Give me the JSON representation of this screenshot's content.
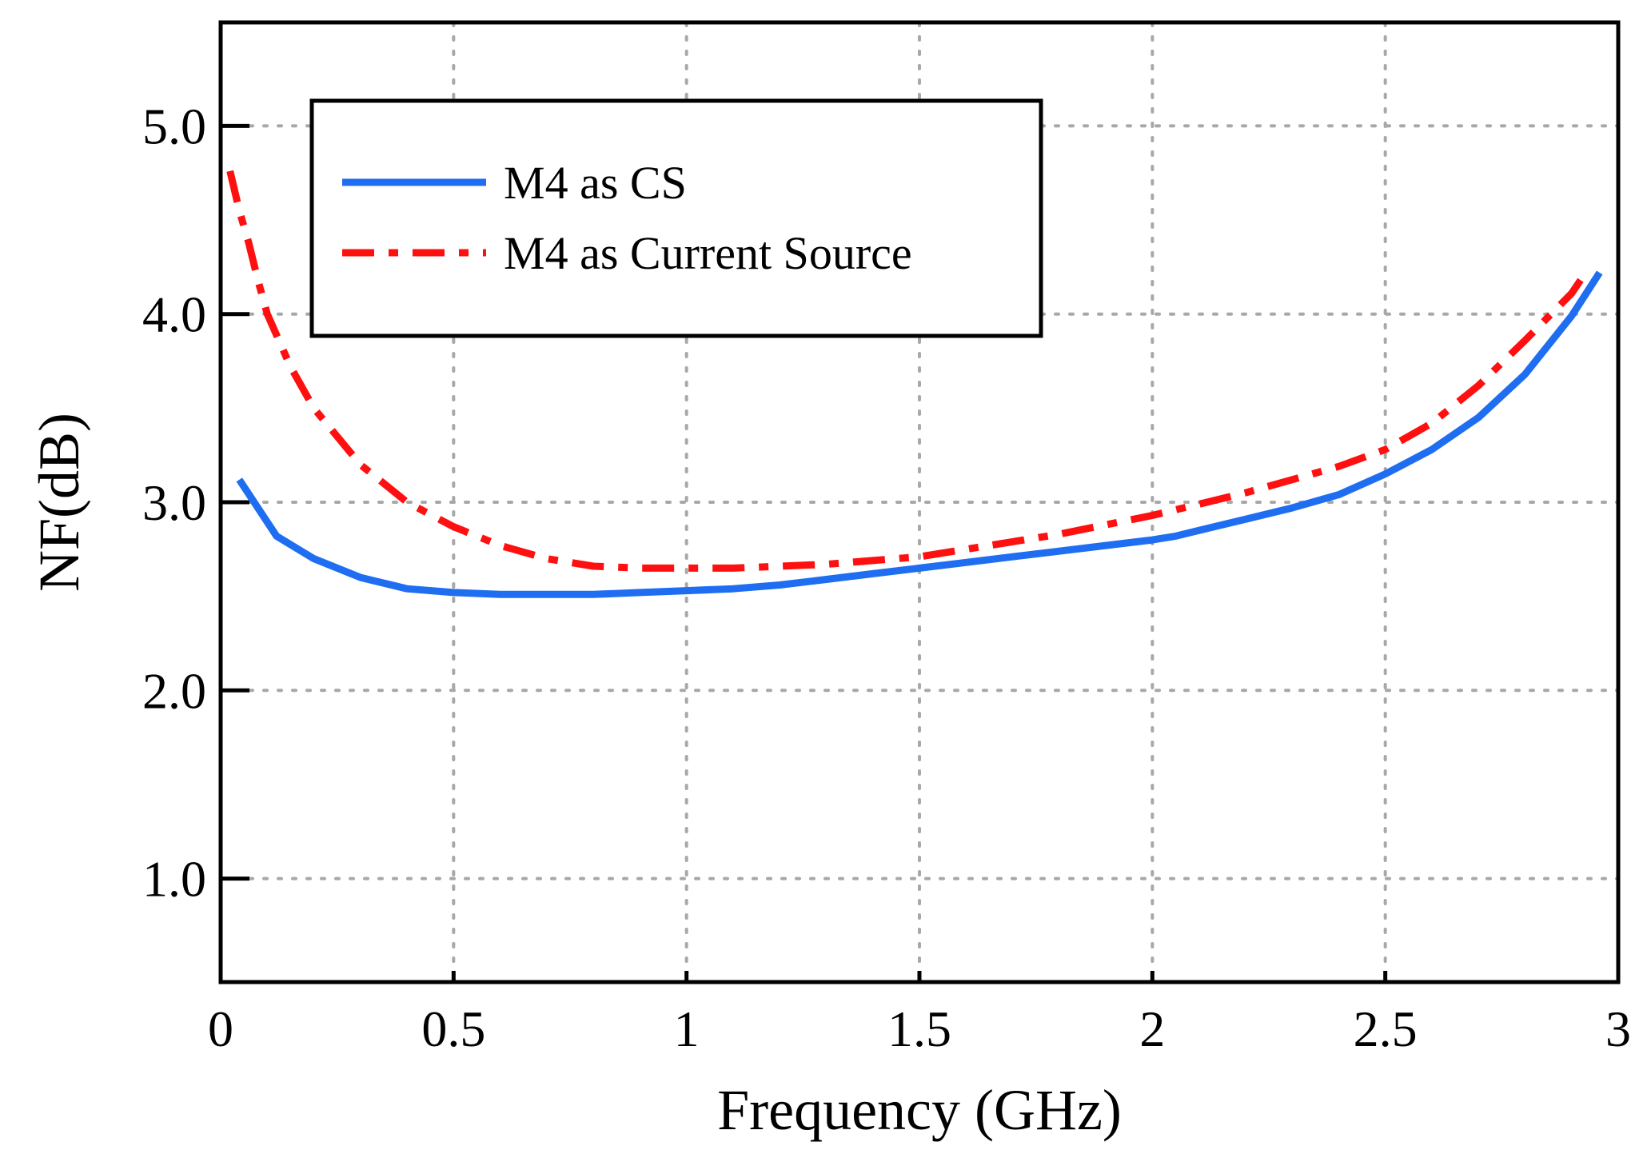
{
  "chart_data": {
    "type": "line",
    "title": "",
    "xlabel": "Frequency (GHz)",
    "ylabel": "NF(dB)",
    "xlim": [
      0,
      3
    ],
    "ylim": [
      0.45,
      5.55
    ],
    "grid": true,
    "x_ticks": [
      0,
      0.5,
      1,
      1.5,
      2,
      2.5,
      3
    ],
    "x_tick_labels": [
      "0",
      "0.5",
      "1",
      "1.5",
      "2",
      "2.5",
      "3"
    ],
    "y_ticks": [
      1.0,
      2.0,
      3.0,
      4.0,
      5.0
    ],
    "y_tick_labels": [
      "1.0",
      "2.0",
      "3.0",
      "4.0",
      "5.0"
    ],
    "legend_position": "top-left",
    "series": [
      {
        "name": "M4 as CS",
        "color": "#1f6ef2",
        "style": "solid",
        "x": [
          0.04,
          0.08,
          0.12,
          0.2,
          0.3,
          0.4,
          0.5,
          0.6,
          0.7,
          0.8,
          0.9,
          1.0,
          1.1,
          1.2,
          1.3,
          1.4,
          1.5,
          1.6,
          1.7,
          1.8,
          1.9,
          2.0,
          2.05,
          2.1,
          2.2,
          2.3,
          2.4,
          2.5,
          2.6,
          2.7,
          2.8,
          2.9,
          2.96
        ],
        "y": [
          3.12,
          2.97,
          2.82,
          2.7,
          2.6,
          2.54,
          2.52,
          2.51,
          2.51,
          2.51,
          2.52,
          2.53,
          2.54,
          2.56,
          2.59,
          2.62,
          2.65,
          2.68,
          2.71,
          2.74,
          2.77,
          2.8,
          2.82,
          2.85,
          2.91,
          2.97,
          3.04,
          3.15,
          3.28,
          3.45,
          3.68,
          3.99,
          4.22
        ]
      },
      {
        "name": "M4 as Current Source",
        "color": "#ff1010",
        "style": "dash-dot",
        "x": [
          0.02,
          0.04,
          0.06,
          0.08,
          0.1,
          0.15,
          0.2,
          0.3,
          0.4,
          0.5,
          0.6,
          0.7,
          0.8,
          0.9,
          1.0,
          1.1,
          1.2,
          1.3,
          1.4,
          1.5,
          1.6,
          1.7,
          1.8,
          1.9,
          2.0,
          2.1,
          2.2,
          2.3,
          2.4,
          2.5,
          2.6,
          2.7,
          2.8,
          2.9,
          2.93
        ],
        "y": [
          4.76,
          4.55,
          4.38,
          4.18,
          4.0,
          3.72,
          3.5,
          3.2,
          3.0,
          2.87,
          2.77,
          2.7,
          2.66,
          2.65,
          2.65,
          2.65,
          2.66,
          2.67,
          2.69,
          2.71,
          2.75,
          2.79,
          2.83,
          2.88,
          2.93,
          2.99,
          3.05,
          3.12,
          3.19,
          3.28,
          3.42,
          3.62,
          3.86,
          4.11,
          4.22
        ]
      }
    ]
  }
}
